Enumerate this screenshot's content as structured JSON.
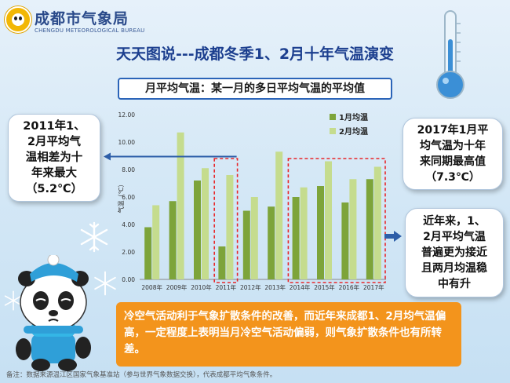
{
  "logo": {
    "title": "成都市气象局",
    "subtitle": "CHENGDU METEOROLOGICAL BUREAU"
  },
  "main_title": "天天图说---成都冬季1、2月十年气温演变",
  "sub_banner": "月平均气温：某一月的多日平均气温的平均值",
  "left_note": "2011年1、\n2月平均气\n温相差为十\n年来最大\n（5.2℃）",
  "right_note_1": "2017年1月平\n均气温为十年\n来同期最高值\n（7.3℃）",
  "right_note_2": "近年来，1、\n2月平均气温\n普遍更为接近\n且两月均温稳\n中有升",
  "bottom_note": "冷空气活动利于气象扩散条件的改善，而近年来成都1、2月均气温偏高，一定程度上表明当月冷空气活动偏弱，则气象扩散条件也有所转差。",
  "footnote": "备注：数据来源温江区国家气象基准站（参与世界气象数据交换），代表成都平均气象条件。",
  "colors": {
    "jan": "#7da43a",
    "feb": "#c5dc8e",
    "highlight_box": "#e8272a",
    "arrow": "#2d5ea8",
    "title": "#1c3f8f",
    "bottom_bg": "#f3941c"
  },
  "icons": [
    "logo-panda-icon",
    "thermometer-icon",
    "snowflake-icon",
    "right-arrow-icon",
    "panda-mascot-icon"
  ],
  "chart_data": {
    "type": "bar",
    "categories": [
      "2008年",
      "2009年",
      "2010年",
      "2011年",
      "2012年",
      "2013年",
      "2014年",
      "2015年",
      "2016年",
      "2017年"
    ],
    "series": [
      {
        "name": "1月均温",
        "values": [
          3.8,
          5.7,
          7.2,
          2.4,
          5.0,
          5.3,
          6.0,
          6.8,
          5.6,
          7.3
        ]
      },
      {
        "name": "2月均温",
        "values": [
          5.4,
          10.7,
          8.1,
          7.6,
          6.0,
          9.3,
          6.7,
          8.6,
          7.3,
          8.2
        ]
      }
    ],
    "ylabel": "气温（℃）",
    "ylim": [
      0,
      12
    ],
    "yticks": [
      "0.00",
      "2.00",
      "4.00",
      "6.00",
      "8.00",
      "10.00",
      "12.00"
    ],
    "grid": false,
    "legend": "top-right",
    "highlights": [
      {
        "label": "2011年",
        "categories": [
          "2011年"
        ]
      },
      {
        "label": "2014年–2017年",
        "categories": [
          "2014年",
          "2015年",
          "2016年",
          "2017年"
        ]
      }
    ]
  }
}
